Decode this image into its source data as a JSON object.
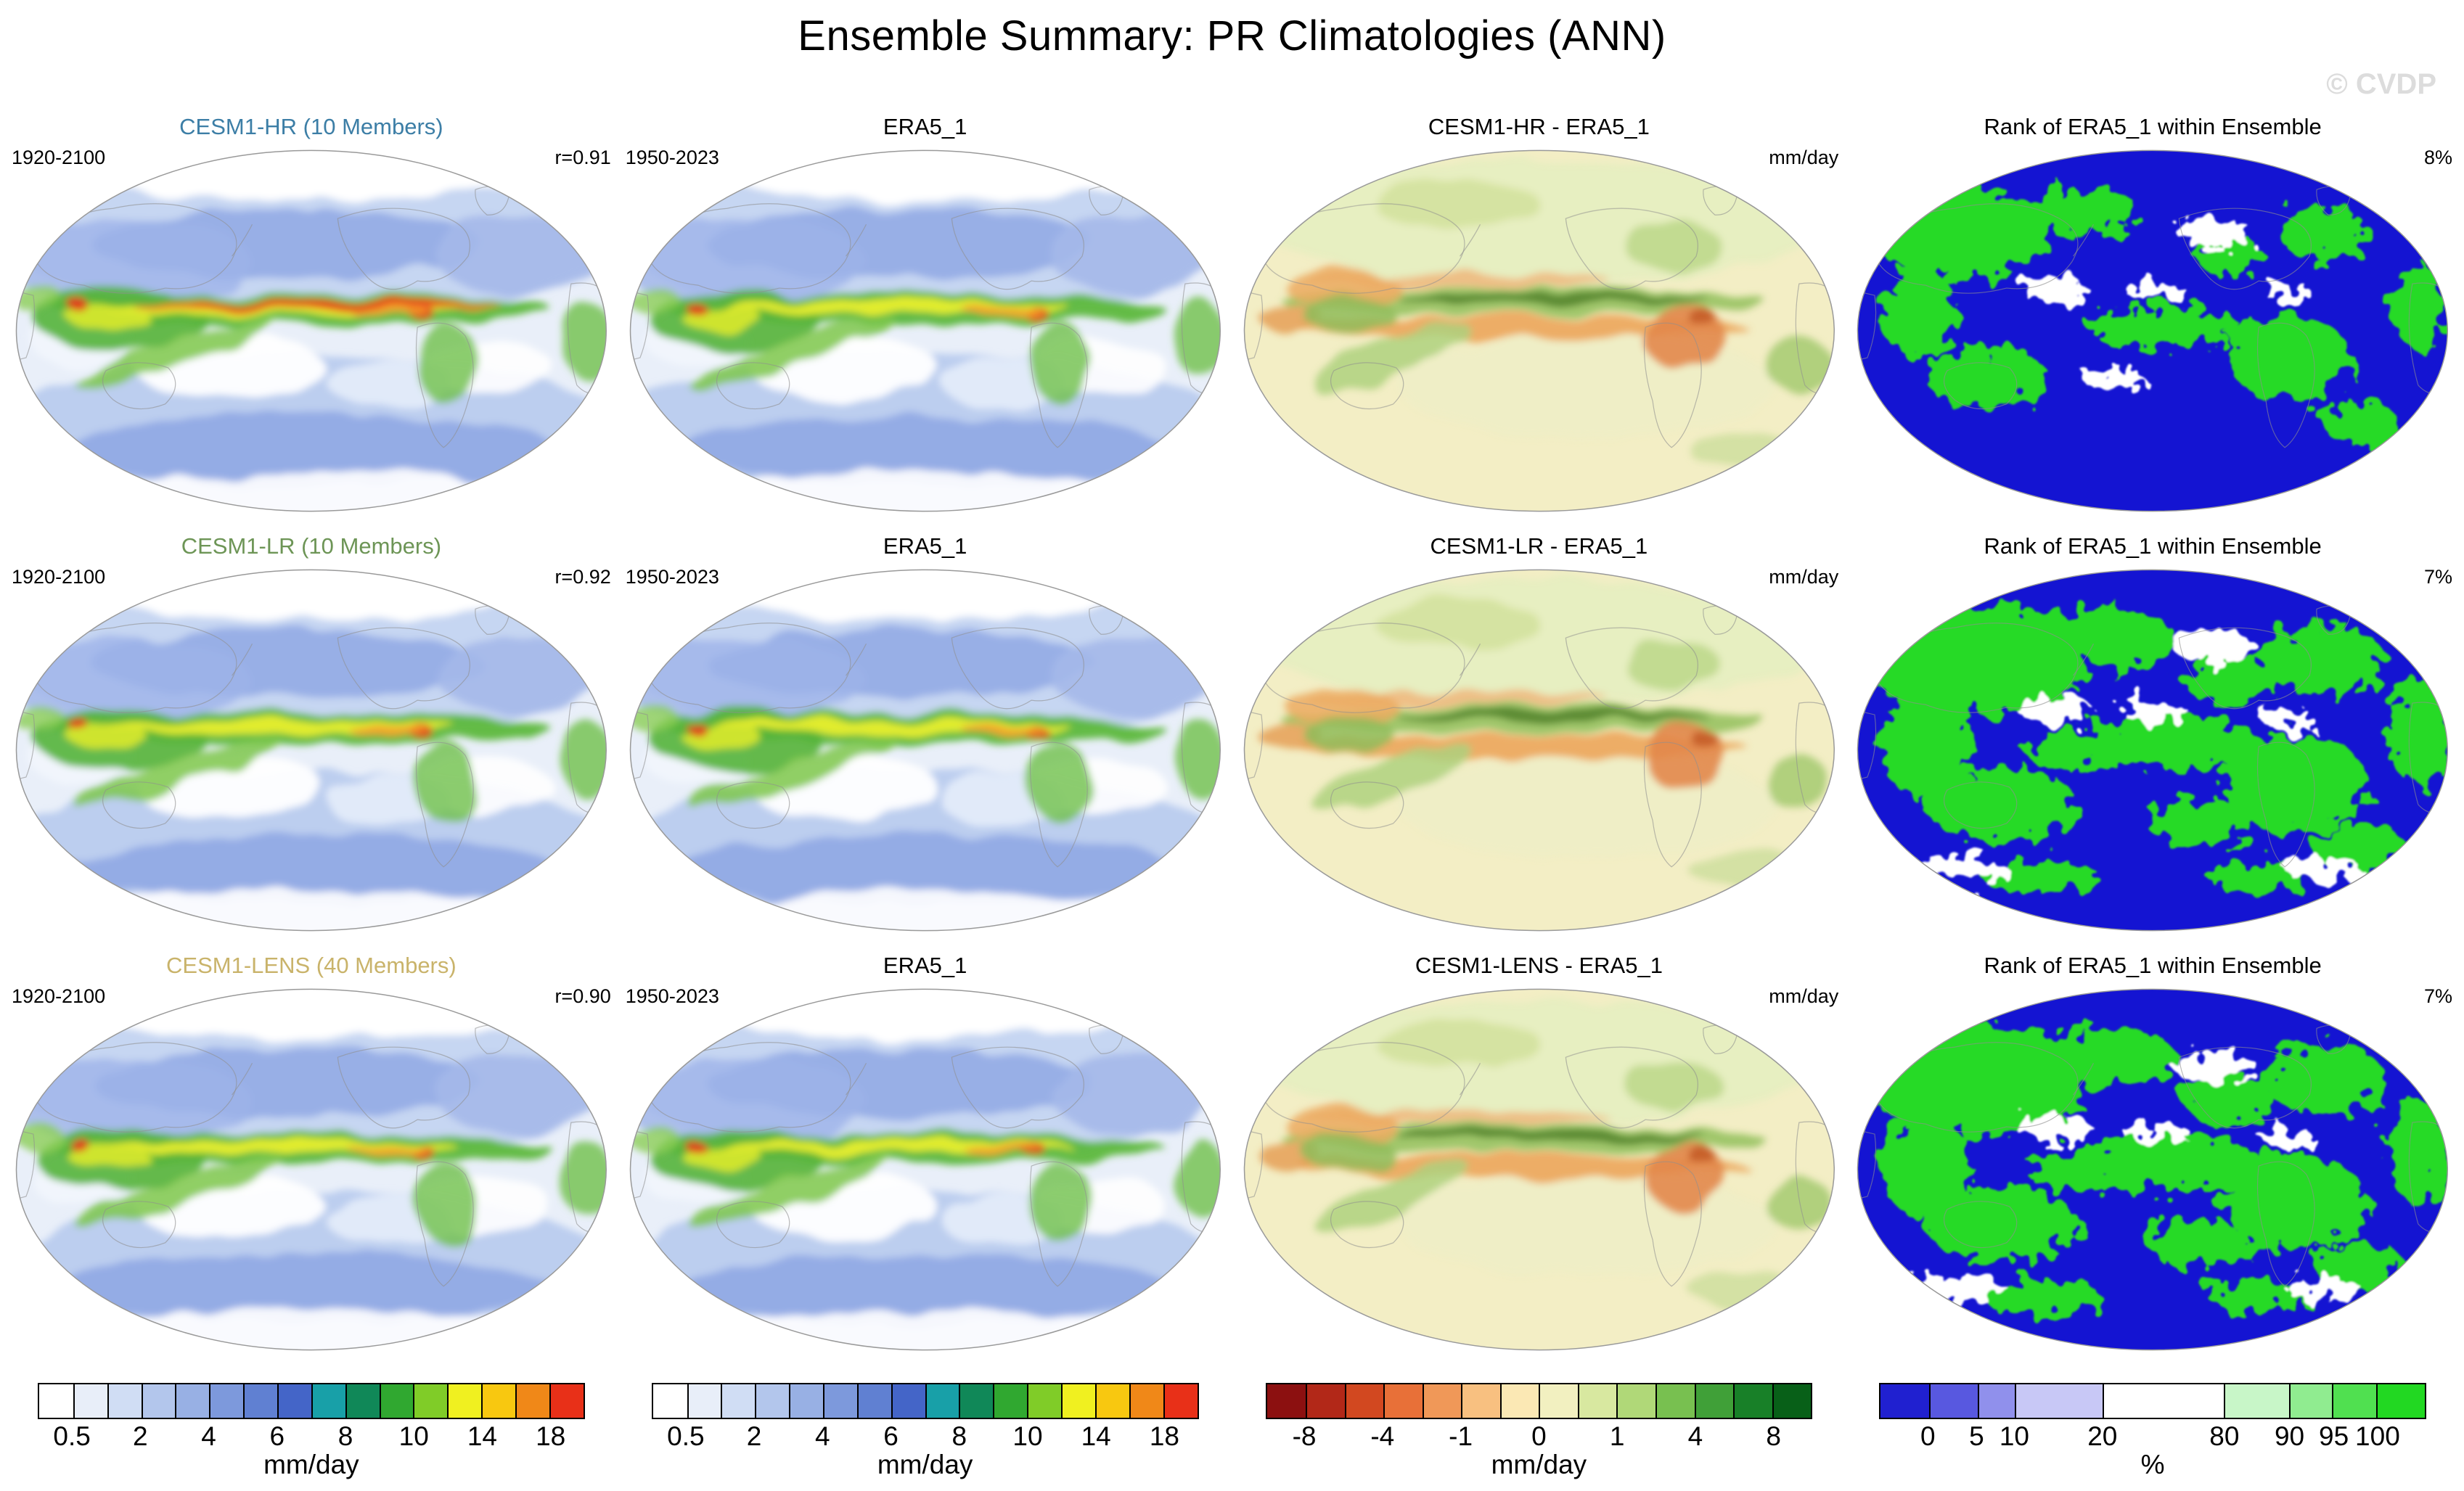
{
  "figure": {
    "title": "Ensemble Summary: PR Climatologies (ANN)",
    "watermark": "© CVDP"
  },
  "rows": [
    {
      "panels": [
        {
          "title": "CESM1-HR (10 Members)",
          "title_color": "#3c7ea6",
          "top_left": "1920-2100",
          "top_right": "r=0.91",
          "map": "precip",
          "variant": "hot"
        },
        {
          "title": "ERA5_1",
          "title_color": "#000000",
          "top_left": "1950-2023",
          "top_right": "",
          "map": "precip",
          "variant": "obs"
        },
        {
          "title": "CESM1-HR - ERA5_1",
          "title_color": "#000000",
          "top_left": "",
          "top_right": "mm/day",
          "map": "diff",
          "variant": "d1"
        },
        {
          "title": "Rank of ERA5_1 within Ensemble",
          "title_color": "#000000",
          "top_left": "",
          "top_right": "8%",
          "map": "rank",
          "variant": "sparse"
        }
      ]
    },
    {
      "panels": [
        {
          "title": "CESM1-LR (10 Members)",
          "title_color": "#6d9556",
          "top_left": "1920-2100",
          "top_right": "r=0.92",
          "map": "precip",
          "variant": "std"
        },
        {
          "title": "ERA5_1",
          "title_color": "#000000",
          "top_left": "1950-2023",
          "top_right": "",
          "map": "precip",
          "variant": "obs"
        },
        {
          "title": "CESM1-LR - ERA5_1",
          "title_color": "#000000",
          "top_left": "",
          "top_right": "mm/day",
          "map": "diff",
          "variant": "d2"
        },
        {
          "title": "Rank of ERA5_1 within Ensemble",
          "title_color": "#000000",
          "top_left": "",
          "top_right": "7%",
          "map": "rank",
          "variant": "dense"
        }
      ]
    },
    {
      "panels": [
        {
          "title": "CESM1-LENS (40 Members)",
          "title_color": "#c9b36a",
          "top_left": "1920-2100",
          "top_right": "r=0.90",
          "map": "precip",
          "variant": "std"
        },
        {
          "title": "ERA5_1",
          "title_color": "#000000",
          "top_left": "1950-2023",
          "top_right": "",
          "map": "precip",
          "variant": "obs"
        },
        {
          "title": "CESM1-LENS - ERA5_1",
          "title_color": "#000000",
          "top_left": "",
          "top_right": "mm/day",
          "map": "diff",
          "variant": "d3"
        },
        {
          "title": "Rank of ERA5_1 within Ensemble",
          "title_color": "#000000",
          "top_left": "",
          "top_right": "7%",
          "map": "rank",
          "variant": "dense"
        }
      ]
    }
  ],
  "colorbars": [
    {
      "unit": "mm/day",
      "segments": [
        {
          "c": "#ffffff",
          "w": 1
        },
        {
          "c": "#e8eef9",
          "w": 1
        },
        {
          "c": "#d0ddf4",
          "w": 1
        },
        {
          "c": "#b3c6ec",
          "w": 1
        },
        {
          "c": "#98b0e4",
          "w": 1
        },
        {
          "c": "#7d99dc",
          "w": 1
        },
        {
          "c": "#6080d2",
          "w": 1
        },
        {
          "c": "#4465c8",
          "w": 1
        },
        {
          "c": "#18a0a8",
          "w": 1
        },
        {
          "c": "#108858",
          "w": 1
        },
        {
          "c": "#30a830",
          "w": 1
        },
        {
          "c": "#80cc28",
          "w": 1
        },
        {
          "c": "#f0f020",
          "w": 1
        },
        {
          "c": "#f8c810",
          "w": 1
        },
        {
          "c": "#f08818",
          "w": 1
        },
        {
          "c": "#e83018",
          "w": 1
        }
      ],
      "ticks": [
        {
          "label": "0.5",
          "pos": 6.25
        },
        {
          "label": "2",
          "pos": 18.75
        },
        {
          "label": "4",
          "pos": 31.25
        },
        {
          "label": "6",
          "pos": 43.75
        },
        {
          "label": "8",
          "pos": 56.25
        },
        {
          "label": "10",
          "pos": 68.75
        },
        {
          "label": "14",
          "pos": 81.25
        },
        {
          "label": "18",
          "pos": 93.75
        }
      ]
    },
    {
      "unit": "mm/day",
      "segments": [
        {
          "c": "#ffffff",
          "w": 1
        },
        {
          "c": "#e8eef9",
          "w": 1
        },
        {
          "c": "#d0ddf4",
          "w": 1
        },
        {
          "c": "#b3c6ec",
          "w": 1
        },
        {
          "c": "#98b0e4",
          "w": 1
        },
        {
          "c": "#7d99dc",
          "w": 1
        },
        {
          "c": "#6080d2",
          "w": 1
        },
        {
          "c": "#4465c8",
          "w": 1
        },
        {
          "c": "#18a0a8",
          "w": 1
        },
        {
          "c": "#108858",
          "w": 1
        },
        {
          "c": "#30a830",
          "w": 1
        },
        {
          "c": "#80cc28",
          "w": 1
        },
        {
          "c": "#f0f020",
          "w": 1
        },
        {
          "c": "#f8c810",
          "w": 1
        },
        {
          "c": "#f08818",
          "w": 1
        },
        {
          "c": "#e83018",
          "w": 1
        }
      ],
      "ticks": [
        {
          "label": "0.5",
          "pos": 6.25
        },
        {
          "label": "2",
          "pos": 18.75
        },
        {
          "label": "4",
          "pos": 31.25
        },
        {
          "label": "6",
          "pos": 43.75
        },
        {
          "label": "8",
          "pos": 56.25
        },
        {
          "label": "10",
          "pos": 68.75
        },
        {
          "label": "14",
          "pos": 81.25
        },
        {
          "label": "18",
          "pos": 93.75
        }
      ]
    },
    {
      "unit": "mm/day",
      "segments": [
        {
          "c": "#8c1010",
          "w": 1
        },
        {
          "c": "#b22818",
          "w": 1
        },
        {
          "c": "#d24820",
          "w": 1
        },
        {
          "c": "#e87038",
          "w": 1
        },
        {
          "c": "#f09858",
          "w": 1
        },
        {
          "c": "#f8c080",
          "w": 1
        },
        {
          "c": "#fbe8b4",
          "w": 1
        },
        {
          "c": "#f2f0c0",
          "w": 1
        },
        {
          "c": "#d8e8a0",
          "w": 1
        },
        {
          "c": "#b0d878",
          "w": 1
        },
        {
          "c": "#78c050",
          "w": 1
        },
        {
          "c": "#40a038",
          "w": 1
        },
        {
          "c": "#188028",
          "w": 1
        },
        {
          "c": "#086018",
          "w": 1
        }
      ],
      "ticks": [
        {
          "label": "-8",
          "pos": 7.1
        },
        {
          "label": "-4",
          "pos": 21.4
        },
        {
          "label": "-1",
          "pos": 35.7
        },
        {
          "label": "0",
          "pos": 50
        },
        {
          "label": "1",
          "pos": 64.3
        },
        {
          "label": "4",
          "pos": 78.6
        },
        {
          "label": "8",
          "pos": 92.9
        }
      ]
    },
    {
      "unit": "%",
      "segments": [
        {
          "c": "#2020d0",
          "w": 8.9
        },
        {
          "c": "#5858e0",
          "w": 8.9
        },
        {
          "c": "#9090ec",
          "w": 6.9
        },
        {
          "c": "#c8c8f6",
          "w": 16.1
        },
        {
          "c": "#ffffff",
          "w": 22.3
        },
        {
          "c": "#c8f6c8",
          "w": 11.9
        },
        {
          "c": "#90ec90",
          "w": 8.0
        },
        {
          "c": "#50e050",
          "w": 8.1
        },
        {
          "c": "#22d822",
          "w": 8.9
        }
      ],
      "ticks": [
        {
          "label": "0",
          "pos": 8.9
        },
        {
          "label": "5",
          "pos": 17.8
        },
        {
          "label": "10",
          "pos": 24.7
        },
        {
          "label": "20",
          "pos": 40.8
        },
        {
          "label": "80",
          "pos": 63.1
        },
        {
          "label": "90",
          "pos": 75
        },
        {
          "label": "95",
          "pos": 83.1
        },
        {
          "label": "100",
          "pos": 91.1
        }
      ]
    }
  ],
  "chart_data": {
    "type": "heatmap",
    "subtype": "global-map-grid",
    "title": "Ensemble Summary: PR Climatologies (ANN)",
    "grid": {
      "rows": 3,
      "cols": 4
    },
    "row_models": [
      {
        "model": "CESM1-HR",
        "members": 10,
        "period": "1920-2100",
        "r_vs_obs": 0.91,
        "obs": "ERA5_1",
        "obs_period": "1950-2023",
        "rank_pct": "8%"
      },
      {
        "model": "CESM1-LR",
        "members": 10,
        "period": "1920-2100",
        "r_vs_obs": 0.92,
        "obs": "ERA5_1",
        "obs_period": "1950-2023",
        "rank_pct": "7%"
      },
      {
        "model": "CESM1-LENS",
        "members": 40,
        "period": "1920-2100",
        "r_vs_obs": 0.9,
        "obs": "ERA5_1",
        "obs_period": "1950-2023",
        "rank_pct": "7%"
      }
    ],
    "column_kinds": [
      "model ensemble climatology",
      "observations (ERA5_1)",
      "model minus observations",
      "rank of ERA5_1 within ensemble"
    ],
    "scales": {
      "climatology": {
        "unit": "mm/day",
        "ticks": [
          0.5,
          2,
          4,
          6,
          8,
          10,
          14,
          18
        ]
      },
      "difference": {
        "unit": "mm/day",
        "ticks": [
          -8,
          -4,
          -1,
          0,
          1,
          4,
          8
        ]
      },
      "rank": {
        "unit": "%",
        "ticks": [
          0,
          5,
          10,
          20,
          80,
          90,
          95,
          100
        ]
      }
    },
    "legend_position": "bottom",
    "grid_lines": false
  }
}
